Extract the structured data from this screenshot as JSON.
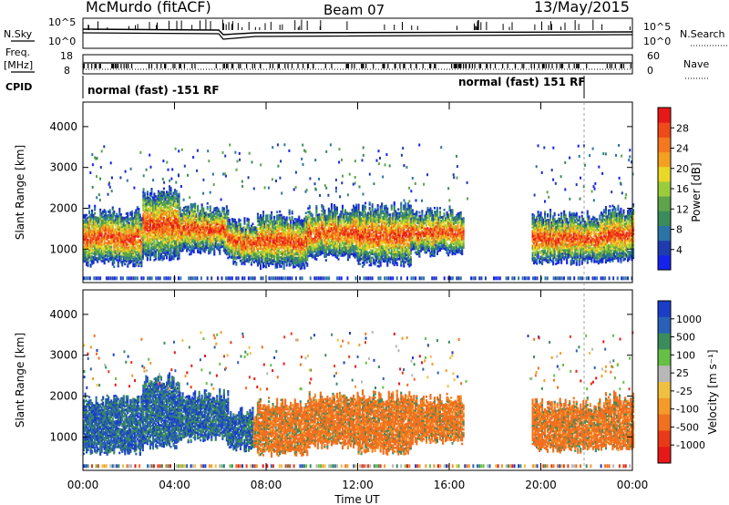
{
  "header": {
    "title": "McMurdo (fitACF)",
    "beam": "Beam 07",
    "date": "13/May/2015"
  },
  "top_panels": {
    "nsky_label": "N.Sky",
    "nsearch_label": "N.Search",
    "noise_ticks": [
      "10^5",
      "10^0"
    ],
    "freq_label_1": "Freq.",
    "freq_label_2": "[MHz]",
    "freq_ticks": [
      "18",
      "8"
    ],
    "nave_label": "Nave",
    "nave_ticks": [
      "60",
      "0"
    ],
    "cpid_label": "CPID",
    "cpid_left": "normal (fast) -151 RF",
    "cpid_right": "normal (fast) 151 RF"
  },
  "chart_data": [
    {
      "type": "heatmap",
      "quantity": "Power",
      "ylabel": "Slant Range [km]",
      "ylim": [
        180,
        4600
      ],
      "yticks": [
        "1000",
        "2000",
        "3000",
        "4000"
      ],
      "colorbar_label": "Power [dB]",
      "colorbar_ticks": [
        "4",
        "8",
        "12",
        "16",
        "20",
        "24",
        "28"
      ],
      "colorbar_colors": [
        "#1522ee",
        "#1f3cae",
        "#2b74a6",
        "#3a8c5c",
        "#5da44a",
        "#9ccc3c",
        "#e8d828",
        "#f3a020",
        "#f37820",
        "#ee4a1a",
        "#e81818"
      ]
    },
    {
      "type": "heatmap",
      "quantity": "Velocity",
      "ylabel": "Slant Range [km]",
      "ylim": [
        180,
        4600
      ],
      "yticks": [
        "1000",
        "2000",
        "3000",
        "4000"
      ],
      "colorbar_label": "Velocity [m s⁻¹]",
      "colorbar_ticks": [
        "1000",
        "500",
        "100",
        "25",
        "-25",
        "-100",
        "-500",
        "-1000"
      ],
      "colorbar_colors": [
        "#1a3ec8",
        "#2a60b8",
        "#3a8c5c",
        "#66c046",
        "#b8b8b8",
        "#f0c040",
        "#f39a28",
        "#f07020",
        "#e83a18",
        "#e81818"
      ]
    }
  ],
  "xaxis": {
    "label": "Time UT",
    "ticks": [
      "00:00",
      "04:00",
      "08:00",
      "12:00",
      "16:00",
      "20:00",
      "00:00"
    ]
  },
  "bands": [
    {
      "t0": 0.0,
      "t1": 2.6,
      "lo": 650,
      "hi": 1900
    },
    {
      "t0": 2.6,
      "t1": 4.2,
      "lo": 800,
      "hi": 2400
    },
    {
      "t0": 4.2,
      "t1": 6.3,
      "lo": 950,
      "hi": 2000
    },
    {
      "t0": 6.3,
      "t1": 7.6,
      "lo": 700,
      "hi": 1600
    },
    {
      "t0": 7.6,
      "t1": 9.8,
      "lo": 600,
      "hi": 1800
    },
    {
      "t0": 9.8,
      "t1": 12.0,
      "lo": 800,
      "hi": 1950
    },
    {
      "t0": 12.0,
      "t1": 14.3,
      "lo": 650,
      "hi": 2000
    },
    {
      "t0": 14.3,
      "t1": 16.6,
      "lo": 900,
      "hi": 1900
    },
    {
      "t0": 19.6,
      "t1": 22.8,
      "lo": 700,
      "hi": 1800
    },
    {
      "t0": 22.8,
      "t1": 24.0,
      "lo": 750,
      "hi": 1950
    }
  ]
}
